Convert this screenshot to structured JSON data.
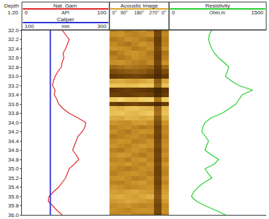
{
  "chart_data": {
    "type": "well_log",
    "depth_label": "Depth",
    "scale_label": "1:20",
    "grid": false,
    "ylim": [
      32,
      36
    ],
    "yticks": [
      {
        "value": 32,
        "label": "32.0"
      },
      {
        "value": 32.2,
        "label": "32.2"
      },
      {
        "value": 32.4,
        "label": "32.4"
      },
      {
        "value": 32.6,
        "label": "32.6"
      },
      {
        "value": 32.8,
        "label": "32.8"
      },
      {
        "value": 33,
        "label": "33.0"
      },
      {
        "value": 33.2,
        "label": "33.2"
      },
      {
        "value": 33.4,
        "label": "33.4"
      },
      {
        "value": 33.6,
        "label": "33.6"
      },
      {
        "value": 33.8,
        "label": "33.8"
      },
      {
        "value": 34,
        "label": "34.0"
      },
      {
        "value": 34.2,
        "label": "34.2"
      },
      {
        "value": 34.4,
        "label": "34.4"
      },
      {
        "value": 34.6,
        "label": "34.6"
      },
      {
        "value": 34.8,
        "label": "34.8"
      },
      {
        "value": 35,
        "label": "35.0"
      },
      {
        "value": 35.2,
        "label": "35.2"
      },
      {
        "value": 35.4,
        "label": "35.4"
      },
      {
        "value": 35.6,
        "label": "35.6"
      },
      {
        "value": 35.8,
        "label": "35.8"
      },
      {
        "value": 36,
        "label": "36.0"
      }
    ],
    "depth": [
      32,
      32.1,
      32.2,
      32.3,
      32.4,
      32.5,
      32.6,
      32.7,
      32.8,
      32.9,
      33,
      33.1,
      33.2,
      33.3,
      33.4,
      33.5,
      33.6,
      33.7,
      33.8,
      33.9,
      34,
      34.1,
      34.2,
      34.3,
      34.4,
      34.5,
      34.6,
      34.7,
      34.8,
      34.9,
      35,
      35.1,
      35.2,
      35.3,
      35.4,
      35.5,
      35.6,
      35.7,
      35.8,
      35.9,
      36
    ],
    "tracks": [
      {
        "title": "Nat. Gam",
        "type": "line",
        "unit": "API",
        "color": "#e02020",
        "xlim": [
          0,
          100
        ],
        "xticks": [
          0,
          100
        ],
        "values": [
          46,
          50,
          54,
          52,
          50,
          47,
          48,
          46,
          45,
          41,
          38,
          36,
          35,
          38,
          37,
          40,
          42,
          47,
          54,
          64,
          73,
          72,
          69,
          64,
          62,
          60,
          58,
          62,
          65,
          60,
          54,
          52,
          50,
          46,
          42,
          36,
          31,
          30,
          35,
          40,
          46
        ]
      },
      {
        "title": "Caliper",
        "type": "line",
        "unit": "mm",
        "color": "#2a2ad8",
        "xlim": [
          100,
          300
        ],
        "xticks": [
          100,
          300
        ],
        "values": [
          165,
          165,
          165,
          165,
          165,
          165,
          165,
          165,
          165,
          165,
          165,
          165,
          165,
          165,
          165,
          165,
          165,
          165,
          165,
          165,
          165,
          165,
          165,
          165,
          165,
          165,
          165,
          165,
          165,
          165,
          165,
          165,
          165,
          165,
          165,
          165,
          165,
          165,
          165,
          165,
          165
        ]
      },
      {
        "title": "Acoustic Image",
        "type": "heatmap",
        "color": "#d4a020",
        "xlim": [
          0,
          360
        ],
        "xticks": [
          {
            "value": 0,
            "label": "0°"
          },
          {
            "value": 90,
            "label": "90°"
          },
          {
            "value": 180,
            "label": "180°"
          },
          {
            "value": 270,
            "label": "270°"
          },
          {
            "value": 360,
            "label": "0°"
          }
        ],
        "azimuth": [
          22.5,
          67.5,
          112.5,
          157.5,
          202.5,
          247.5,
          292.5,
          337.5
        ],
        "zlim": [
          0,
          100
        ],
        "amplitude": [
          [
            55,
            58,
            52,
            56,
            60,
            54,
            30,
            52
          ],
          [
            60,
            62,
            57,
            55,
            58,
            61,
            32,
            57
          ],
          [
            52,
            55,
            60,
            58,
            54,
            50,
            28,
            53
          ],
          [
            58,
            54,
            50,
            56,
            62,
            58,
            30,
            55
          ],
          [
            62,
            60,
            58,
            52,
            55,
            60,
            33,
            60
          ],
          [
            50,
            55,
            60,
            62,
            58,
            52,
            30,
            50
          ],
          [
            56,
            52,
            55,
            60,
            57,
            55,
            28,
            54
          ],
          [
            60,
            62,
            58,
            55,
            52,
            58,
            32,
            60
          ],
          [
            45,
            48,
            52,
            50,
            47,
            44,
            25,
            46
          ],
          [
            35,
            38,
            40,
            42,
            40,
            36,
            20,
            35
          ],
          [
            25,
            28,
            30,
            32,
            30,
            27,
            15,
            26
          ],
          [
            70,
            72,
            68,
            66,
            70,
            74,
            40,
            70
          ],
          [
            82,
            80,
            78,
            80,
            84,
            82,
            45,
            80
          ],
          [
            22,
            25,
            28,
            26,
            24,
            22,
            12,
            22
          ],
          [
            30,
            28,
            26,
            30,
            32,
            30,
            15,
            28
          ],
          [
            85,
            88,
            84,
            82,
            86,
            88,
            50,
            86
          ],
          [
            28,
            25,
            30,
            32,
            28,
            26,
            14,
            27
          ],
          [
            78,
            75,
            80,
            82,
            78,
            76,
            45,
            78
          ],
          [
            80,
            82,
            78,
            76,
            80,
            84,
            48,
            80
          ],
          [
            72,
            70,
            75,
            74,
            70,
            72,
            40,
            72
          ],
          [
            62,
            60,
            58,
            64,
            66,
            60,
            35,
            62
          ],
          [
            55,
            58,
            60,
            56,
            52,
            55,
            30,
            56
          ],
          [
            60,
            56,
            52,
            58,
            62,
            60,
            32,
            58
          ],
          [
            52,
            55,
            58,
            60,
            56,
            52,
            30,
            54
          ],
          [
            58,
            62,
            60,
            54,
            56,
            60,
            32,
            58
          ],
          [
            62,
            58,
            55,
            60,
            64,
            62,
            34,
            60
          ],
          [
            55,
            52,
            58,
            62,
            58,
            54,
            30,
            56
          ],
          [
            60,
            64,
            62,
            56,
            52,
            58,
            32,
            60
          ],
          [
            56,
            58,
            54,
            60,
            62,
            56,
            30,
            55
          ],
          [
            62,
            60,
            64,
            58,
            56,
            62,
            33,
            62
          ],
          [
            58,
            55,
            52,
            56,
            60,
            58,
            30,
            57
          ],
          [
            54,
            58,
            60,
            62,
            58,
            54,
            30,
            55
          ],
          [
            60,
            62,
            58,
            54,
            56,
            60,
            32,
            60
          ],
          [
            56,
            54,
            58,
            62,
            64,
            58,
            30,
            56
          ],
          [
            62,
            60,
            56,
            58,
            60,
            62,
            33,
            62
          ],
          [
            66,
            64,
            68,
            70,
            66,
            64,
            36,
            66
          ],
          [
            70,
            72,
            68,
            66,
            70,
            74,
            38,
            70
          ],
          [
            64,
            66,
            70,
            68,
            64,
            62,
            35,
            64
          ],
          [
            58,
            60,
            62,
            58,
            56,
            58,
            32,
            58
          ],
          [
            60,
            58,
            56,
            60,
            62,
            60,
            33,
            60
          ],
          [
            56,
            58,
            60,
            56,
            54,
            56,
            30,
            56
          ]
        ]
      },
      {
        "title": "Resistivity",
        "type": "line",
        "unit": "Ohm.m",
        "color": "#1fcf2a",
        "xlim": [
          0,
          1500
        ],
        "xticks": [
          0,
          1500
        ],
        "values": [
          660,
          620,
          610,
          630,
          660,
          700,
          765,
          850,
          920,
          900,
          870,
          960,
          1080,
          1290,
          1130,
          1080,
          1030,
          930,
          820,
          650,
          555,
          520,
          505,
          560,
          610,
          580,
          555,
          650,
          765,
          700,
          555,
          600,
          660,
          540,
          450,
          380,
          345,
          420,
          555,
          720,
          870
        ]
      }
    ]
  }
}
